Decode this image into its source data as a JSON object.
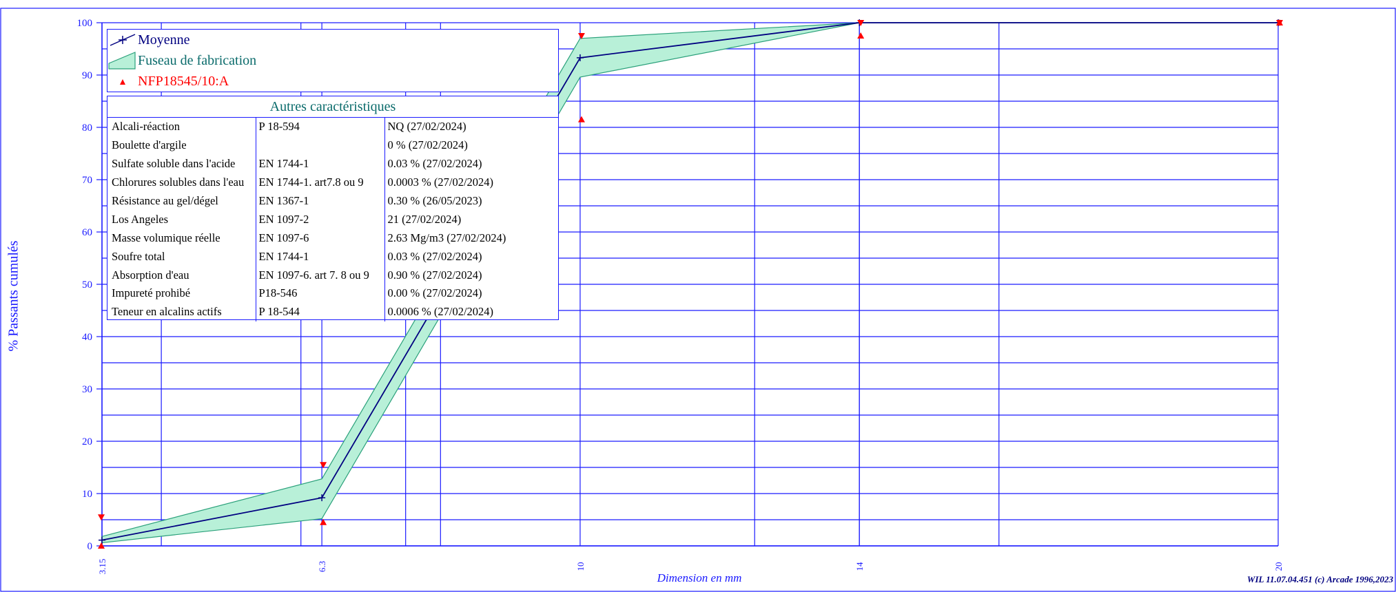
{
  "chart_data": {
    "type": "line",
    "ylabel": "% Passants cumulés",
    "xlabel": "Dimension en mm",
    "ylim": [
      0,
      100
    ],
    "yticks": [
      0,
      10,
      20,
      30,
      40,
      50,
      60,
      70,
      80,
      90,
      100
    ],
    "categories": [
      "3.15",
      "6.3",
      "10",
      "14",
      "20"
    ],
    "series": [
      {
        "name": "Moyenne",
        "x": [
          3.15,
          6.3,
          10,
          14,
          20
        ],
        "values": [
          1.1,
          9.2,
          93.3,
          100,
          100
        ],
        "color": "#000080"
      },
      {
        "name": "Fuseau de fabrication",
        "x": [
          3.15,
          6.3,
          10,
          14,
          20
        ],
        "upper": [
          1.8,
          12.8,
          97.0,
          100,
          100
        ],
        "lower": [
          0.6,
          5.2,
          89.6,
          100,
          100
        ],
        "color": "#b8f0d8"
      },
      {
        "name": "NFP18545/10:A",
        "x": [
          3.15,
          3.15,
          6.3,
          6.3,
          10,
          10,
          14,
          14,
          20,
          20
        ],
        "values": [
          5.5,
          0,
          15.5,
          4.5,
          97.5,
          81.5,
          100,
          97.5,
          100,
          100
        ],
        "color": "#ff0000"
      }
    ],
    "legend_position": "top-left",
    "grid": true
  },
  "others_table": {
    "title": "Autres caractéristiques",
    "rows": [
      [
        "Alcali-réaction",
        "P 18-594",
        "NQ  (27/02/2024)"
      ],
      [
        "Boulette d'argile",
        "",
        "0 %  (27/02/2024)"
      ],
      [
        "Sulfate soluble dans l'acide",
        "EN 1744-1",
        "0.03 %  (27/02/2024)"
      ],
      [
        "Chlorures solubles dans l'eau",
        "EN 1744-1. art7.8 ou 9",
        "0.0003 %  (27/02/2024)"
      ],
      [
        "Résistance au gel/dégel",
        "EN 1367-1",
        "0.30 %  (26/05/2023)"
      ],
      [
        "Los Angeles",
        "EN 1097-2",
        "21  (27/02/2024)"
      ],
      [
        "Masse volumique réelle",
        "EN 1097-6",
        "2.63 Mg/m3  (27/02/2024)"
      ],
      [
        "Soufre total",
        "EN 1744-1",
        "0.03 %  (27/02/2024)"
      ],
      [
        "Absorption d'eau",
        "EN 1097-6. art 7. 8 ou 9",
        "0.90 %  (27/02/2024)"
      ],
      [
        "Impureté prohibé",
        "P18-546",
        "0.00 %  (27/02/2024)"
      ],
      [
        "Teneur en alcalins actifs",
        "P 18-544",
        "0.0006 %  (27/02/2024)"
      ]
    ]
  },
  "footer": {
    "copyright": "WIL 11.07.04.451 (c) Arcade 1996,2023"
  },
  "colors": {
    "grid": "#1a1aff",
    "axis_text": "#1a1aff",
    "band_fill": "#b8f0d8",
    "band_stroke": "#2aa07a",
    "mean_line": "#000080",
    "spec_marker": "#ff0000"
  }
}
